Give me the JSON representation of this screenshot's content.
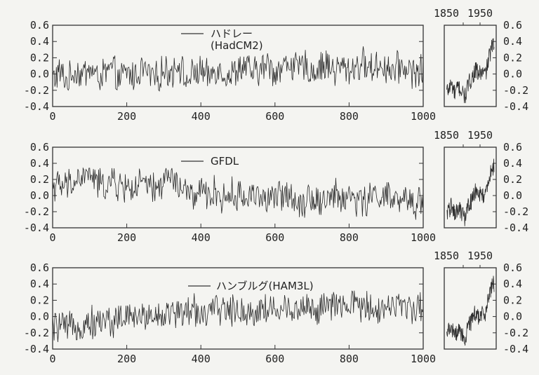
{
  "chart_data": [
    {
      "type": "line",
      "title": "",
      "xlabel": "",
      "ylabel": "",
      "xlim": [
        0,
        1000
      ],
      "ylim": [
        -0.4,
        0.6
      ],
      "xticks": [
        0,
        200,
        400,
        600,
        800,
        1000
      ],
      "yticks": [
        0.6,
        0.4,
        0.2,
        0.0,
        -0.2,
        -0.4
      ],
      "xtick_labels": [
        "0",
        "200",
        "400",
        "600",
        "800",
        "1000"
      ],
      "ytick_labels": [
        "0.6",
        "0.4",
        "0.2",
        "0.0",
        "-0.2",
        "-0.4"
      ],
      "legend": "ハドレー\n(HadCM2)",
      "legend_lines": [
        "ハドレー",
        "(HadCM2)"
      ],
      "x": [
        0,
        20,
        40,
        60,
        80,
        100,
        120,
        140,
        160,
        180,
        200,
        220,
        240,
        260,
        280,
        300,
        320,
        340,
        360,
        380,
        400,
        420,
        440,
        460,
        480,
        500,
        520,
        540,
        560,
        580,
        600,
        620,
        640,
        660,
        680,
        700,
        720,
        740,
        760,
        780,
        800,
        820,
        840,
        860,
        880,
        900,
        920,
        940,
        960,
        980,
        1000
      ],
      "series": [
        {
          "values": [
            -0.05,
            0.02,
            -0.1,
            0.05,
            -0.02,
            0.08,
            -0.05,
            0.0,
            0.06,
            -0.08,
            0.03,
            -0.04,
            0.07,
            0.0,
            -0.06,
            0.05,
            0.02,
            0.15,
            -0.1,
            0.0,
            0.04,
            -0.05,
            0.08,
            0.02,
            -0.03,
            0.06,
            0.1,
            0.0,
            0.05,
            0.12,
            0.03,
            0.08,
            0.15,
            0.05,
            0.1,
            0.02,
            0.08,
            0.12,
            0.04,
            0.09,
            0.05,
            0.1,
            0.13,
            0.06,
            0.12,
            0.08,
            0.04,
            0.1,
            0.06,
            0.02,
            0.05
          ]
        }
      ],
      "inset": {
        "xtick_labels": [
          "1850",
          "1950"
        ],
        "x": [
          1860,
          1870,
          1880,
          1890,
          1900,
          1910,
          1920,
          1930,
          1940,
          1950,
          1960,
          1970,
          1980,
          1990
        ],
        "values": [
          -0.2,
          -0.12,
          -0.25,
          -0.15,
          -0.22,
          -0.28,
          -0.12,
          -0.05,
          0.05,
          0.0,
          0.02,
          0.0,
          0.2,
          0.35
        ]
      }
    },
    {
      "type": "line",
      "title": "",
      "xlabel": "",
      "ylabel": "",
      "xlim": [
        0,
        1000
      ],
      "ylim": [
        -0.4,
        0.6
      ],
      "xticks": [
        0,
        200,
        400,
        600,
        800,
        1000
      ],
      "yticks": [
        0.6,
        0.4,
        0.2,
        0.0,
        -0.2,
        -0.4
      ],
      "xtick_labels": [
        "0",
        "200",
        "400",
        "600",
        "800",
        "1000"
      ],
      "ytick_labels": [
        "0.6",
        "0.4",
        "0.2",
        "0.0",
        "-0.2",
        "-0.4"
      ],
      "legend": "GFDL",
      "legend_lines": [
        "GFDL"
      ],
      "x": [
        0,
        20,
        40,
        60,
        80,
        100,
        120,
        140,
        160,
        180,
        200,
        220,
        240,
        260,
        280,
        300,
        320,
        340,
        360,
        380,
        400,
        420,
        440,
        460,
        480,
        500,
        520,
        540,
        560,
        580,
        600,
        620,
        640,
        660,
        680,
        700,
        720,
        740,
        760,
        780,
        800,
        820,
        840,
        860,
        880,
        900,
        920,
        940,
        960,
        980,
        1000
      ],
      "series": [
        {
          "values": [
            0.15,
            0.1,
            0.12,
            0.18,
            0.22,
            0.28,
            0.15,
            0.12,
            0.18,
            0.1,
            0.12,
            0.08,
            0.15,
            0.1,
            0.05,
            0.2,
            0.25,
            0.1,
            0.05,
            -0.02,
            0.03,
            0.0,
            0.05,
            -0.05,
            0.02,
            0.0,
            -0.04,
            0.05,
            0.0,
            -0.08,
            -0.02,
            0.0,
            0.05,
            -0.1,
            -0.05,
            0.0,
            -0.08,
            -0.04,
            0.02,
            -0.06,
            0.0,
            -0.05,
            -0.08,
            -0.03,
            0.03,
            -0.02,
            -0.06,
            -0.1,
            -0.05,
            -0.12,
            0.0
          ]
        }
      ],
      "inset": {
        "xtick_labels": [
          "1850",
          "1950"
        ],
        "x": [
          1860,
          1870,
          1880,
          1890,
          1900,
          1910,
          1920,
          1930,
          1940,
          1950,
          1960,
          1970,
          1980,
          1990
        ],
        "values": [
          -0.2,
          -0.12,
          -0.25,
          -0.15,
          -0.22,
          -0.3,
          -0.12,
          -0.05,
          0.05,
          0.0,
          0.02,
          0.0,
          0.2,
          0.35
        ]
      }
    },
    {
      "type": "line",
      "title": "",
      "xlabel": "",
      "ylabel": "",
      "xlim": [
        0,
        1000
      ],
      "ylim": [
        -0.4,
        0.6
      ],
      "xticks": [
        0,
        200,
        400,
        600,
        800,
        1000
      ],
      "yticks": [
        0.6,
        0.4,
        0.2,
        0.0,
        -0.2,
        -0.4
      ],
      "xtick_labels": [
        "0",
        "200",
        "400",
        "600",
        "800",
        "1000"
      ],
      "ytick_labels": [
        "0.6",
        "0.4",
        "0.2",
        "0.0",
        "-0.2",
        "-0.4"
      ],
      "legend": "ハンブルグ(HAM3L)",
      "legend_lines": [
        "ハンブルグ(HAM3L)"
      ],
      "x": [
        0,
        20,
        40,
        60,
        80,
        100,
        120,
        140,
        160,
        180,
        200,
        220,
        240,
        260,
        280,
        300,
        320,
        340,
        360,
        380,
        400,
        420,
        440,
        460,
        480,
        500,
        520,
        540,
        560,
        580,
        600,
        620,
        640,
        660,
        680,
        700,
        720,
        740,
        760,
        780,
        800,
        820,
        840,
        860,
        880,
        900,
        920,
        940,
        960,
        980,
        1000
      ],
      "series": [
        {
          "values": [
            -0.15,
            -0.1,
            -0.18,
            -0.08,
            -0.12,
            -0.05,
            -0.1,
            -0.02,
            -0.08,
            0.0,
            -0.04,
            0.02,
            -0.03,
            0.05,
            0.0,
            0.04,
            0.02,
            0.08,
            0.03,
            0.1,
            0.05,
            0.02,
            0.08,
            0.12,
            0.05,
            0.1,
            0.06,
            0.02,
            0.12,
            0.08,
            0.1,
            0.05,
            0.12,
            0.08,
            0.14,
            0.1,
            0.06,
            0.12,
            0.15,
            0.08,
            0.12,
            0.18,
            0.1,
            0.14,
            0.08,
            0.12,
            0.16,
            0.1,
            0.14,
            0.12,
            0.05
          ]
        }
      ],
      "inset": {
        "xtick_labels": [
          "1850",
          "1950"
        ],
        "x": [
          1860,
          1870,
          1880,
          1890,
          1900,
          1910,
          1920,
          1930,
          1940,
          1950,
          1960,
          1970,
          1980,
          1990
        ],
        "values": [
          -0.2,
          -0.12,
          -0.25,
          -0.15,
          -0.22,
          -0.28,
          -0.12,
          -0.05,
          0.05,
          0.0,
          0.02,
          0.05,
          0.25,
          0.4
        ]
      }
    }
  ]
}
